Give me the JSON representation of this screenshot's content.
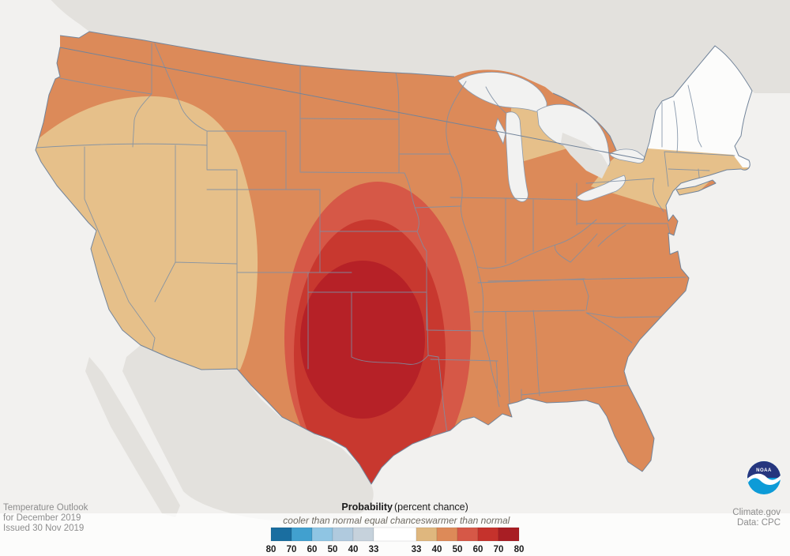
{
  "header": {
    "title": "Temperature Outlook for December 2019"
  },
  "footer": {
    "line1": "Temperature Outlook",
    "line2": "for December 2019",
    "line3": "Issued 30 Nov 2019"
  },
  "credits": {
    "source": "Climate.gov",
    "data_source": "Data: CPC",
    "logo": "noaa-logo",
    "logo_text": "NOAA",
    "logo_navy": "#26367e",
    "logo_blue": "#0d9bd7"
  },
  "legend": {
    "title_bold": "Probability",
    "title_rest": " (percent chance)",
    "categories": [
      {
        "label": "cooler than normal"
      },
      {
        "label": "equal chances"
      },
      {
        "label": "warmer than normal"
      }
    ],
    "cool_values": [
      "80",
      "70",
      "60",
      "50",
      "40",
      "33"
    ],
    "warm_values": [
      "33",
      "40",
      "50",
      "60",
      "70",
      "80"
    ],
    "cool_colors": [
      "#1a6ea0",
      "#41a0cf",
      "#8fc5e3",
      "#b0cade",
      "#c6d2dc"
    ],
    "equal_color": "#ffffff",
    "warm_colors": [
      "#dfb77e",
      "#dd8a58",
      "#d65847",
      "#c5322c",
      "#a81e24"
    ]
  },
  "map_data": {
    "type": "probability-contour-map",
    "area": "contiguous United States",
    "colors": {
      "ocean": "#f2f1ef",
      "foreign_land": "#e3e1dd",
      "lakes": "#f2f2f1",
      "equal_chances": "#fcfcfb",
      "warm_33_40": "#e6c08a",
      "warm_40_50": "#dc8a59",
      "warm_50_60": "#d65847",
      "warm_60_70": "#c8382f",
      "warm_70_80": "#b62127"
    },
    "regions": [
      {
        "name": "warm-40-50-base",
        "level": "40-50% warmer than normal",
        "extent": "most of contiguous US"
      },
      {
        "name": "warm-33-40-west",
        "level": "33-40% warmer than normal",
        "extent": "interior West: California, Nevada, Utah, Arizona, New Mexico, Idaho, E Oregon"
      },
      {
        "name": "warm-33-40-northeast",
        "level": "33-40% warmer than normal",
        "extent": "New York, S New England, N Pennsylvania, New Jersey, N Michigan"
      },
      {
        "name": "equal-chances-northeast",
        "level": "equal chances",
        "extent": "Maine, New Hampshire, Vermont, NE New York"
      },
      {
        "name": "warm-50-60-ring",
        "level": "50-60% warmer than normal",
        "extent": "Kansas, Missouri edge, most of Texas, E New Mexico, Louisiana W edge"
      },
      {
        "name": "warm-60-70-ring",
        "level": "60-70% warmer than normal",
        "extent": "S Kansas, Oklahoma surroundings, central/south Texas"
      },
      {
        "name": "warm-70-80-core",
        "level": "70-80% warmer than normal",
        "extent": "Oklahoma, S Kansas, N Texas"
      }
    ]
  }
}
